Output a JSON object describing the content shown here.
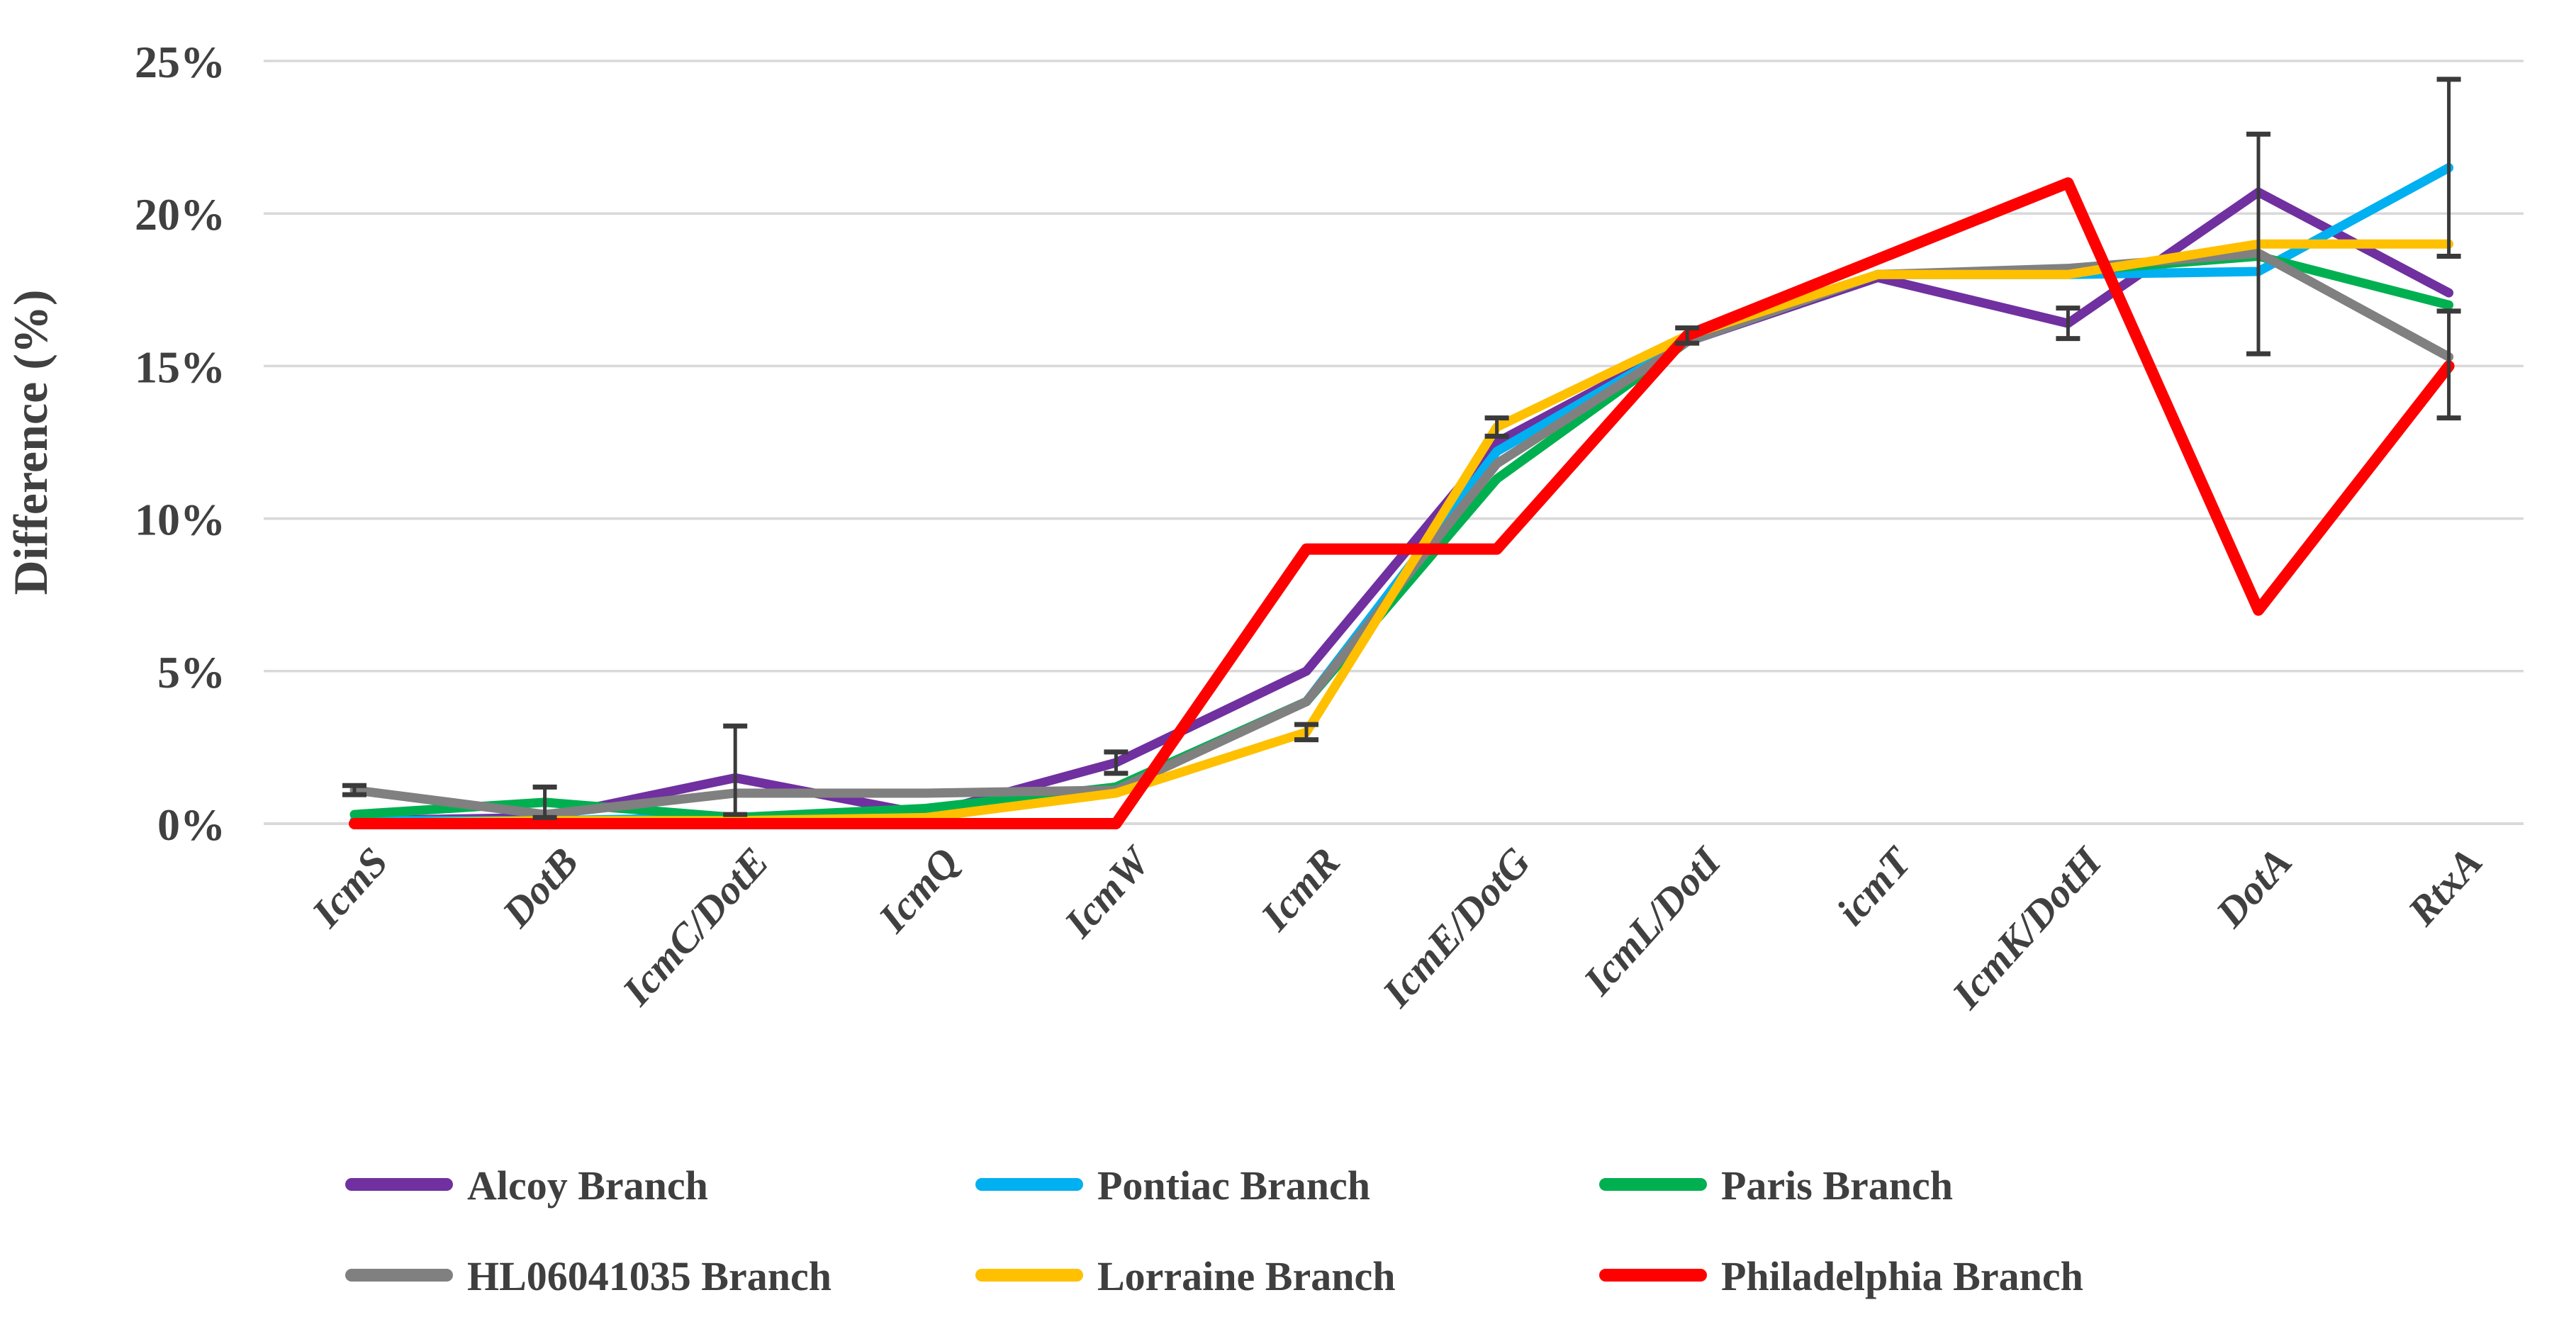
{
  "chart_data": {
    "type": "line",
    "title": "",
    "xlabel": "",
    "ylabel": "Difference (%)",
    "categories": [
      "IcmS",
      "DotB",
      "IcmC/DotE",
      "IcmQ",
      "IcmW",
      "IcmR",
      "IcmE/DotG",
      "IcmL/DotI",
      "icmT",
      "IcmK/DotH",
      "DotA",
      "RtxA"
    ],
    "series": [
      {
        "name": "Alcoy Branch",
        "color": "#7030A0",
        "values": [
          0.1,
          0.2,
          1.5,
          0.3,
          2.0,
          5.0,
          12.5,
          15.8,
          17.9,
          16.4,
          20.7,
          17.4
        ]
      },
      {
        "name": "Pontiac Branch",
        "color": "#00B0F0",
        "values": [
          0.1,
          0.1,
          0.2,
          0.3,
          1.2,
          4.0,
          12.2,
          15.8,
          18.0,
          18.0,
          18.1,
          21.5
        ]
      },
      {
        "name": "Paris Branch",
        "color": "#00B050",
        "values": [
          0.3,
          0.7,
          0.2,
          0.5,
          1.2,
          4.0,
          11.3,
          15.8,
          18.0,
          18.1,
          18.6,
          17.0
        ]
      },
      {
        "name": "HL06041035 Branch",
        "color": "#808080",
        "values": [
          1.1,
          0.3,
          1.0,
          1.0,
          1.1,
          4.0,
          11.8,
          15.8,
          18.0,
          18.2,
          18.7,
          15.3
        ]
      },
      {
        "name": "Lorraine Branch",
        "color": "#FFC000",
        "values": [
          0.0,
          0.1,
          0.1,
          0.2,
          1.0,
          3.0,
          13.0,
          16.0,
          18.0,
          18.0,
          19.0,
          19.0
        ]
      },
      {
        "name": "Philadelphia Branch",
        "color": "#FF0000",
        "values": [
          0.0,
          0.0,
          0.0,
          0.0,
          0.0,
          9.0,
          9.0,
          16.0,
          18.5,
          21.0,
          7.0,
          15.0
        ]
      }
    ],
    "error_bars": [
      {
        "category": "IcmS",
        "series": "HL06041035 Branch",
        "plus": 0.15,
        "minus": 0.15
      },
      {
        "category": "DotB",
        "series": "Paris Branch",
        "plus": 0.5,
        "minus": 0.5
      },
      {
        "category": "IcmC/DotE",
        "series": "Alcoy Branch",
        "plus": 1.7,
        "minus": 1.2
      },
      {
        "category": "IcmW",
        "series": "Alcoy Branch",
        "plus": 0.35,
        "minus": 0.35
      },
      {
        "category": "IcmR",
        "series": "Lorraine Branch",
        "plus": 0.25,
        "minus": 0.25
      },
      {
        "category": "IcmE/DotG",
        "series": "Lorraine Branch",
        "plus": 0.3,
        "minus": 0.3
      },
      {
        "category": "IcmL/DotI",
        "series": "Lorraine Branch",
        "plus": 0.25,
        "minus": 0.25
      },
      {
        "category": "IcmK/DotH",
        "series": "Alcoy Branch",
        "plus": 0.5,
        "minus": 0.5
      },
      {
        "category": "DotA",
        "series": "Lorraine Branch",
        "plus": 3.6,
        "minus": 3.6
      },
      {
        "category": "RtxA",
        "series": "Pontiac Branch",
        "plus": 2.9,
        "minus": 2.9
      },
      {
        "category": "RtxA",
        "series": "Philadelphia Branch",
        "plus": 1.8,
        "minus": 1.7
      }
    ],
    "y_axis": {
      "title": "Difference (%)",
      "min": 0,
      "max": 25,
      "tick_step": 5,
      "tick_labels": [
        "0%",
        "5%",
        "10%",
        "15%",
        "20%",
        "25%"
      ],
      "grid": true
    },
    "legend": {
      "position": "bottom",
      "rows": 2,
      "columns": 3
    },
    "style_colors": {
      "grid": "#D9D9D9",
      "axis_text": "#404040",
      "error_bar": "#3A3A3A"
    }
  }
}
